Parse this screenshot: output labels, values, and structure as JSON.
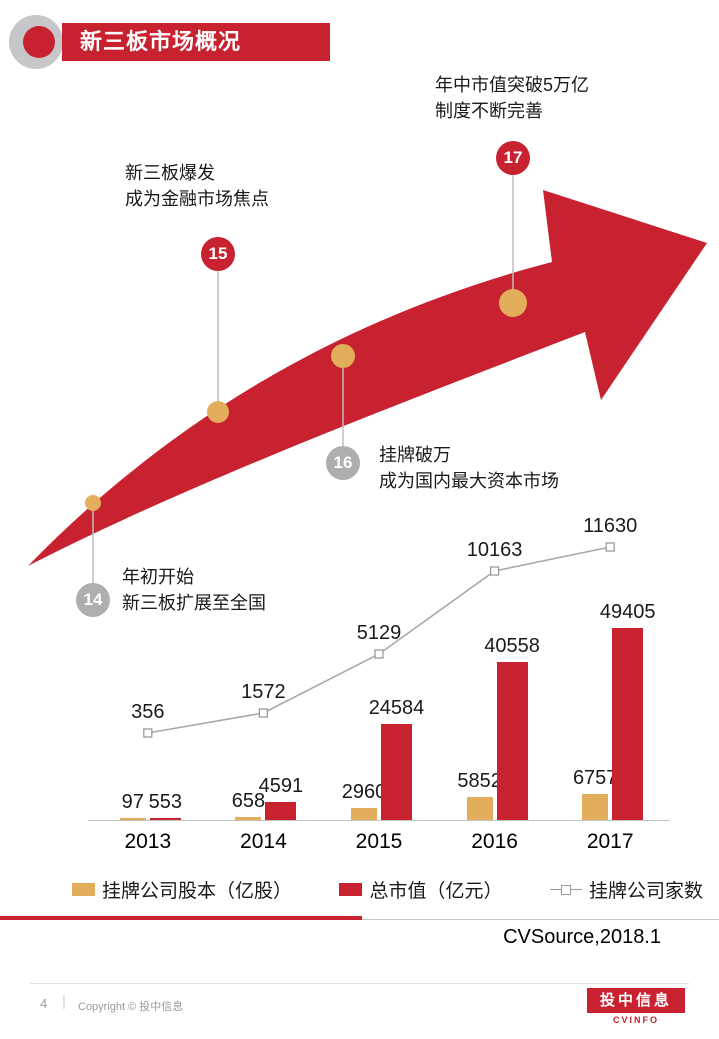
{
  "title": "新三板市场概况",
  "milestones": [
    {
      "num": "14",
      "line1": "年初开始",
      "line2": "新三板扩展至全国"
    },
    {
      "num": "15",
      "line1": "新三板爆发",
      "line2": "成为金融市场焦点"
    },
    {
      "num": "16",
      "line1": "挂牌破万",
      "line2": "成为国内最大资本市场"
    },
    {
      "num": "17",
      "line1": "年中市值突破5万亿",
      "line2": "制度不断完善"
    }
  ],
  "chart_data": {
    "type": "bar",
    "subtype": "grouped-bars-with-line",
    "categories": [
      "2013",
      "2014",
      "2015",
      "2016",
      "2017"
    ],
    "series": [
      {
        "name": "挂牌公司股本（亿股）",
        "type": "bar",
        "color": "#e2ae5c",
        "values": [
          97,
          658,
          2960,
          5852,
          6757
        ]
      },
      {
        "name": "总市值（亿元）",
        "type": "bar",
        "color": "#c8212f",
        "values": [
          553,
          4591,
          24584,
          40558,
          49405
        ]
      },
      {
        "name": "挂牌公司家数",
        "type": "line",
        "color": "#a8a8a8",
        "values": [
          356,
          1572,
          5129,
          10163,
          11630
        ]
      }
    ],
    "legend_position": "bottom",
    "grid": false,
    "data_labels": true,
    "ylim": [
      0,
      49405
    ]
  },
  "source": "CVSource,2018.1",
  "footer": {
    "page": "4",
    "copyright": "Copyright © 投中信息",
    "logo_cn": "投中信息",
    "logo_en": "CVINFO"
  },
  "colors": {
    "accent_red": "#c8212f",
    "gold": "#e2ae5c",
    "badge_gray": "#aeaeae",
    "line_gray": "#a8a8a8"
  }
}
